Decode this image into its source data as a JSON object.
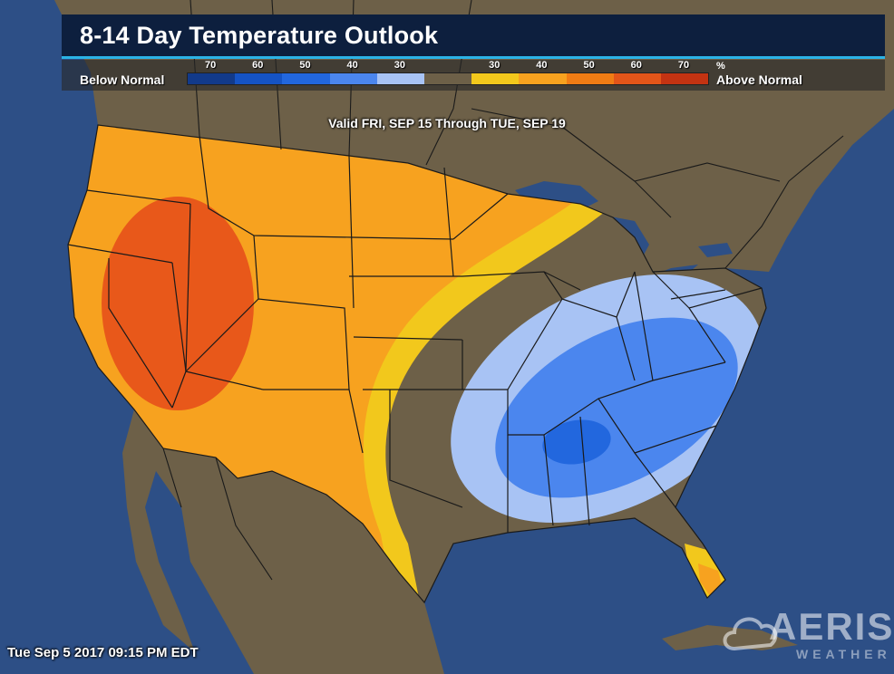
{
  "header": {
    "title": "8-14 Day Temperature Outlook"
  },
  "legend": {
    "below_label": "Below Normal",
    "above_label": "Above Normal",
    "unit": "%",
    "ticks": [
      "70",
      "60",
      "50",
      "40",
      "30",
      "",
      "30",
      "40",
      "50",
      "60",
      "70"
    ],
    "colors": [
      "#123a8a",
      "#1553c4",
      "#2267de",
      "#4b86ee",
      "#a8c3f4",
      "#6d6048",
      "#f2c81c",
      "#f7a21f",
      "#f07c14",
      "#e35519",
      "#c43312"
    ]
  },
  "valid_text": "Valid FRI, SEP 15 Through TUE, SEP 19",
  "timestamp": "Tue Sep 5 2017 09:15 PM EDT",
  "logo": {
    "text": "AERIS",
    "subtext": "WEATHER"
  },
  "map_colors": {
    "ocean": "#2d4f86",
    "land": "#6d6048",
    "above_40": "#f7a21f",
    "above_60": "#e8581a",
    "above_30": "#f2c81c",
    "below_30": "#a8c3f4",
    "below_40": "#4b86ee",
    "below_50": "#2267de",
    "border": "#1a1a1a"
  }
}
